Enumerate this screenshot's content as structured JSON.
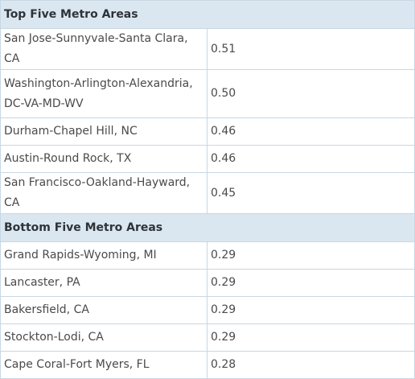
{
  "sections": [
    {
      "title": "Top Five Metro Areas",
      "rows": [
        {
          "area": "San Jose-Sunnyvale-Santa Clara, CA",
          "value": "0.51"
        },
        {
          "area": "Washington-Arlington-Alexandria, DC-VA-MD-WV",
          "value": "0.50"
        },
        {
          "area": "Durham-Chapel Hill, NC",
          "value": "0.46"
        },
        {
          "area": "Austin-Round Rock, TX",
          "value": "0.46"
        },
        {
          "area": "San Francisco-Oakland-Hayward, CA",
          "value": "0.45"
        }
      ]
    },
    {
      "title": "Bottom Five Metro Areas",
      "rows": [
        {
          "area": "Grand Rapids-Wyoming, MI",
          "value": "0.29"
        },
        {
          "area": "Lancaster, PA",
          "value": "0.29"
        },
        {
          "area": "Bakersfield, CA",
          "value": "0.29"
        },
        {
          "area": "Stockton-Lodi, CA",
          "value": "0.29"
        },
        {
          "area": "Cape Coral-Fort Myers, FL",
          "value": "0.28"
        }
      ]
    }
  ]
}
